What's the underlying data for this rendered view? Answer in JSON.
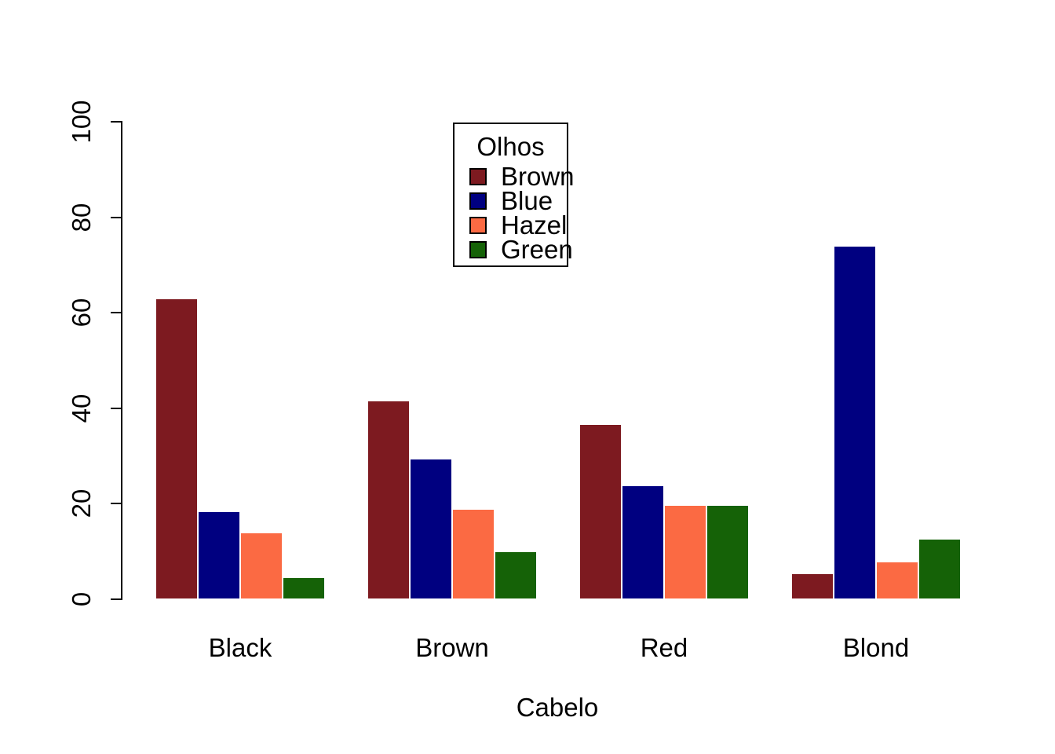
{
  "chart_data": {
    "type": "bar",
    "grouped": true,
    "title": "",
    "xlabel": "Cabelo",
    "ylabel": "",
    "categories": [
      "Black",
      "Brown",
      "Red",
      "Blond"
    ],
    "series": [
      {
        "name": "Brown",
        "color": "#7D1A20",
        "values": [
          63.0,
          41.6,
          36.6,
          5.5
        ]
      },
      {
        "name": "Blue",
        "color": "#000080",
        "values": [
          18.5,
          29.4,
          23.9,
          74.0
        ]
      },
      {
        "name": "Hazel",
        "color": "#FB6A43",
        "values": [
          13.9,
          18.9,
          19.7,
          7.9
        ]
      },
      {
        "name": "Green",
        "color": "#156207",
        "values": [
          4.6,
          10.1,
          19.7,
          12.6
        ]
      }
    ],
    "legend": {
      "title": "Olhos",
      "position": "top-center"
    },
    "ylim": [
      0,
      100
    ],
    "yticks": [
      0,
      20,
      40,
      60,
      80,
      100
    ],
    "grid": false,
    "background": "#FFFFFF",
    "axis_color": "#000000",
    "bar_border_color": "#FFFFFF"
  }
}
